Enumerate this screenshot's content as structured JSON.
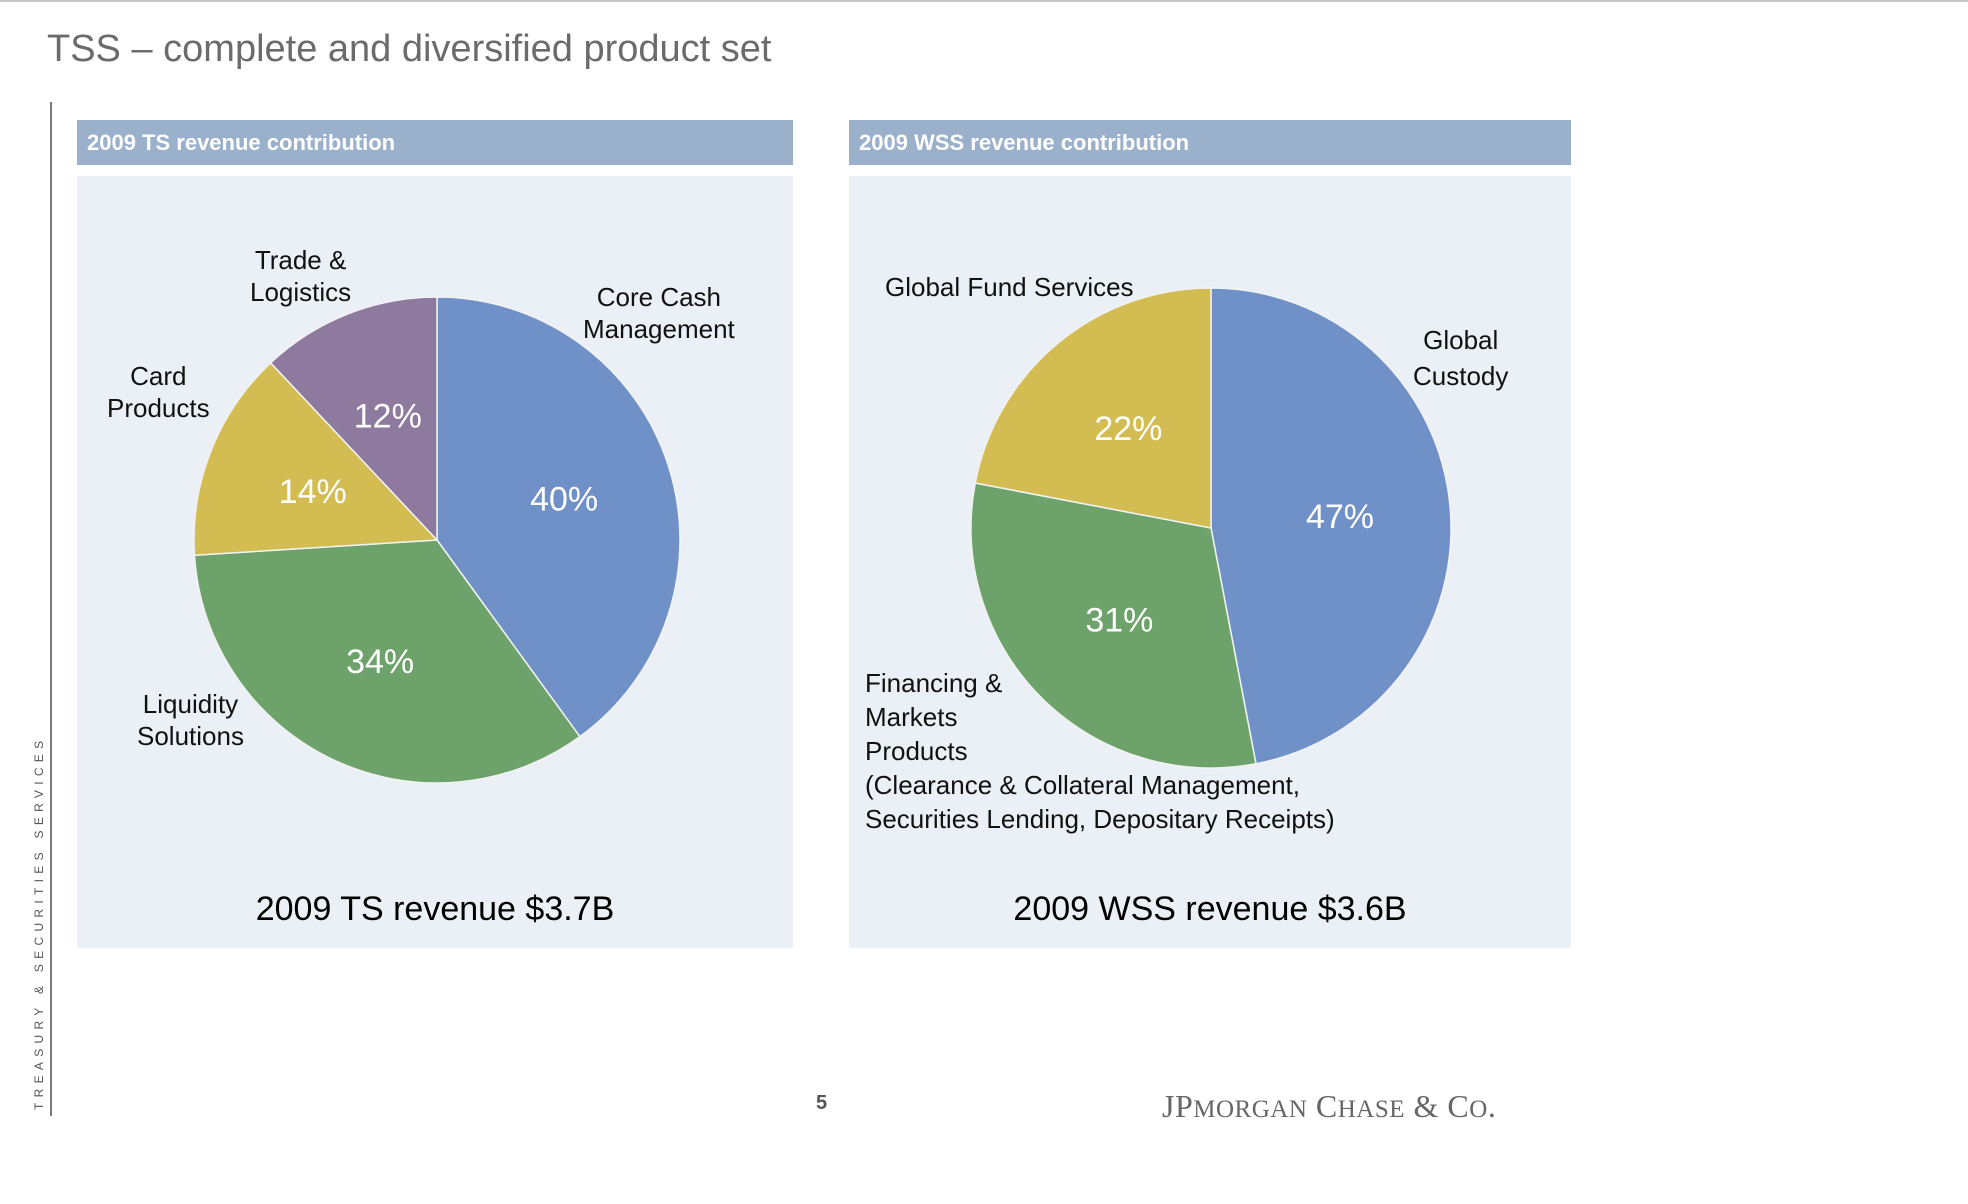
{
  "slide": {
    "title": "TSS – complete and diversified product set",
    "side_text": "TREASURY & SECURITIES SERVICES",
    "page_number": "5",
    "logo_text": "JPMorgan Chase & Co."
  },
  "colors": {
    "blue": "#6f91c8",
    "green": "#6da36a",
    "yellow": "#d3bc52",
    "purple": "#8f7a9f",
    "panel_header": "#9ab0cb",
    "panel_body": "#eaf0f5"
  },
  "panels": [
    {
      "header": "2009 TS revenue contribution",
      "total": "2009 TS revenue $3.7B",
      "labels": {
        "core_cash": [
          "Core Cash",
          "Management"
        ],
        "liquidity": [
          "Liquidity",
          "Solutions"
        ],
        "card": [
          "Card",
          "Products"
        ],
        "trade": [
          "Trade &",
          "Logistics"
        ]
      }
    },
    {
      "header": "2009 WSS revenue contribution",
      "total": "2009 WSS revenue $3.6B",
      "labels": {
        "custody": [
          "Global",
          "Custody"
        ],
        "financing": [
          "Financing &",
          "Markets",
          "Products",
          "(Clearance & Collateral Management,",
          "Securities Lending, Depositary Receipts)"
        ],
        "fund": [
          "Global Fund Services"
        ]
      }
    }
  ],
  "chart_data": [
    {
      "type": "pie",
      "title": "2009 TS revenue contribution",
      "slices": [
        {
          "name": "Core Cash Management",
          "value": 40,
          "label": "40%",
          "color": "#6f91c8"
        },
        {
          "name": "Liquidity Solutions",
          "value": 34,
          "label": "34%",
          "color": "#6da36a"
        },
        {
          "name": "Card Products",
          "value": 14,
          "label": "14%",
          "color": "#d3bc52"
        },
        {
          "name": "Trade & Logistics",
          "value": 12,
          "label": "12%",
          "color": "#8f7a9f"
        }
      ]
    },
    {
      "type": "pie",
      "title": "2009 WSS revenue contribution",
      "slices": [
        {
          "name": "Global Custody",
          "value": 47,
          "label": "47%",
          "color": "#6f91c8"
        },
        {
          "name": "Financing & Markets Products",
          "value": 31,
          "label": "31%",
          "color": "#6da36a"
        },
        {
          "name": "Global Fund Services",
          "value": 22,
          "label": "22%",
          "color": "#d3bc52"
        }
      ]
    }
  ]
}
